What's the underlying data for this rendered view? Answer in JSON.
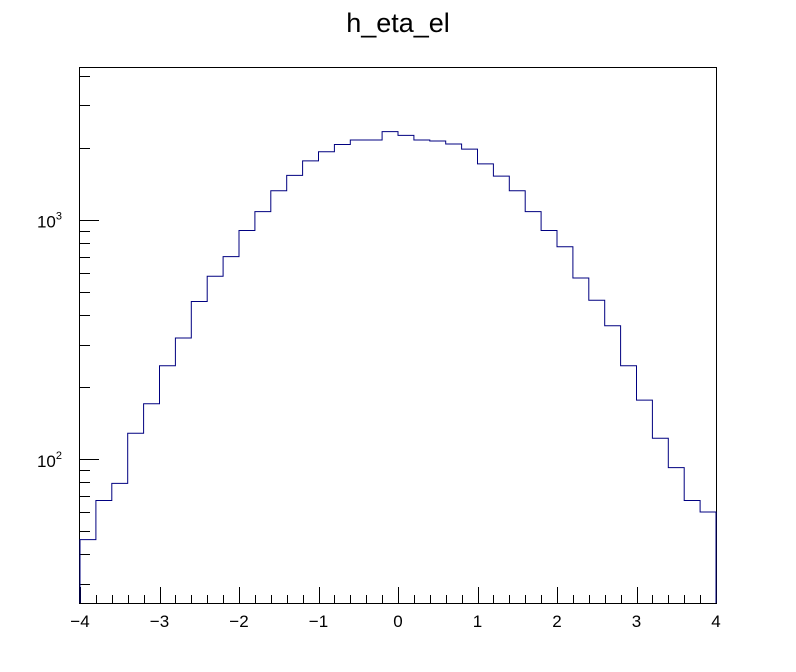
{
  "chart_data": {
    "type": "bar",
    "style": "step-histogram",
    "title": "h_eta_el",
    "xlabel": "",
    "ylabel": "",
    "xlim": [
      -4,
      4
    ],
    "ylim": [
      25,
      4300
    ],
    "y_scale": "log",
    "grid": false,
    "legend": "none",
    "line_color": "#000080",
    "bin_edges": [
      -4.0,
      -3.8,
      -3.6,
      -3.4,
      -3.2,
      -3.0,
      -2.8,
      -2.6,
      -2.4,
      -2.2,
      -2.0,
      -1.8,
      -1.6,
      -1.4,
      -1.2,
      -1.0,
      -0.8,
      -0.6,
      -0.4,
      -0.2,
      0.0,
      0.2,
      0.4,
      0.6,
      0.8,
      1.0,
      1.2,
      1.4,
      1.6,
      1.8,
      2.0,
      2.2,
      2.4,
      2.6,
      2.8,
      3.0,
      3.2,
      3.4,
      3.6,
      3.8,
      4.0
    ],
    "values": [
      46,
      67,
      79,
      128,
      170,
      245,
      320,
      455,
      580,
      700,
      900,
      1080,
      1320,
      1530,
      1760,
      1920,
      2060,
      2150,
      2150,
      2330,
      2250,
      2150,
      2130,
      2070,
      1970,
      1710,
      1520,
      1320,
      1080,
      900,
      770,
      570,
      460,
      360,
      245,
      176,
      122,
      92,
      67,
      60
    ],
    "x_ticks": [
      {
        "value": -4,
        "label": "−4"
      },
      {
        "value": -3,
        "label": "−3"
      },
      {
        "value": -2,
        "label": "−2"
      },
      {
        "value": -1,
        "label": "−1"
      },
      {
        "value": 0,
        "label": "0"
      },
      {
        "value": 1,
        "label": "1"
      },
      {
        "value": 2,
        "label": "2"
      },
      {
        "value": 3,
        "label": "3"
      },
      {
        "value": 4,
        "label": "4"
      }
    ],
    "y_ticks": [
      {
        "value": 100,
        "base": "10",
        "exp": "2"
      },
      {
        "value": 1000,
        "base": "10",
        "exp": "3"
      }
    ]
  }
}
